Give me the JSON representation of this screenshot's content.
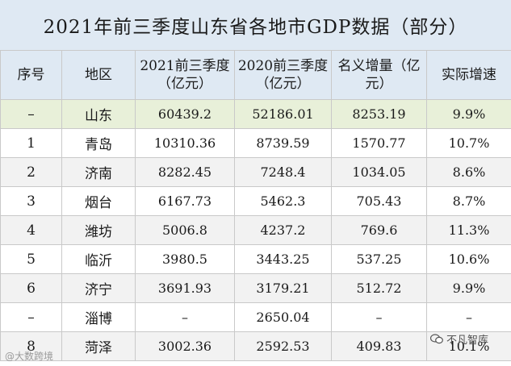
{
  "title": "2021年前三季度山东省各地市GDP数据（部分）",
  "headers": {
    "index": "序号",
    "region": "地区",
    "gdp2021": "2021前三季度（亿元）",
    "gdp2020": "2020前三季度（亿元）",
    "nominal": "名义增量（亿元）",
    "real": "实际增速"
  },
  "rows": [
    {
      "index": "–",
      "region": "山东",
      "gdp2021": "60439.2",
      "gdp2020": "52186.01",
      "nominal": "8253.19",
      "real": "9.9%"
    },
    {
      "index": "1",
      "region": "青岛",
      "gdp2021": "10310.36",
      "gdp2020": "8739.59",
      "nominal": "1570.77",
      "real": "10.7%"
    },
    {
      "index": "2",
      "region": "济南",
      "gdp2021": "8282.45",
      "gdp2020": "7248.4",
      "nominal": "1034.05",
      "real": "8.6%"
    },
    {
      "index": "3",
      "region": "烟台",
      "gdp2021": "6167.73",
      "gdp2020": "5462.3",
      "nominal": "705.43",
      "real": "8.7%"
    },
    {
      "index": "4",
      "region": "潍坊",
      "gdp2021": "5006.8",
      "gdp2020": "4237.2",
      "nominal": "769.6",
      "real": "11.3%"
    },
    {
      "index": "5",
      "region": "临沂",
      "gdp2021": "3980.5",
      "gdp2020": "3443.25",
      "nominal": "537.25",
      "real": "10.6%"
    },
    {
      "index": "6",
      "region": "济宁",
      "gdp2021": "3691.93",
      "gdp2020": "3179.21",
      "nominal": "512.72",
      "real": "9.9%"
    },
    {
      "index": "–",
      "region": "淄博",
      "gdp2021": "–",
      "gdp2020": "2650.04",
      "nominal": "–",
      "real": "–"
    },
    {
      "index": "8",
      "region": "菏泽",
      "gdp2021": "3002.36",
      "gdp2020": "2592.53",
      "nominal": "409.83",
      "real": "10.1%"
    }
  ],
  "watermark_left": "@大数跨境",
  "watermark_right": "不凡智库"
}
